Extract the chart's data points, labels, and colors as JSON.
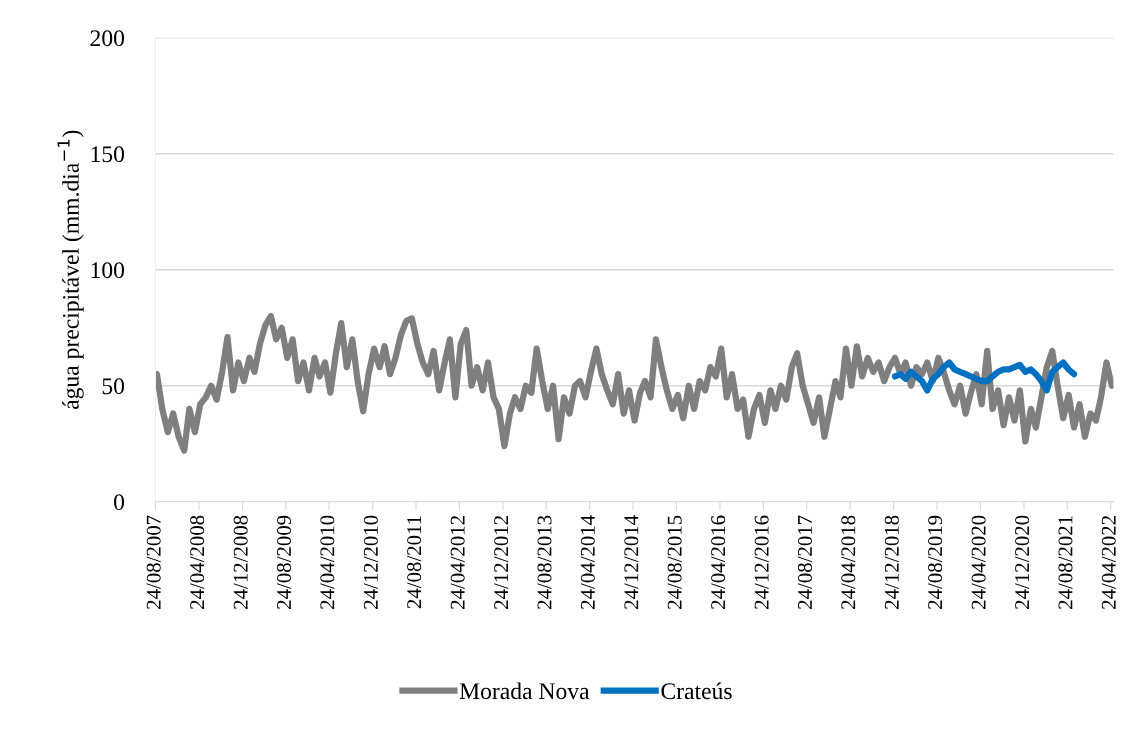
{
  "chart_data": {
    "type": "line",
    "ylabel": "água precipitável (mm.dia$^{−1}$)",
    "x": [
      "2007-09",
      "2007-10",
      "2007-11",
      "2007-12",
      "2008-01",
      "2008-02",
      "2008-03",
      "2008-04",
      "2008-05",
      "2008-06",
      "2008-07",
      "2008-08",
      "2008-09",
      "2008-10",
      "2008-11",
      "2008-12",
      "2009-01",
      "2009-02",
      "2009-03",
      "2009-04",
      "2009-05",
      "2009-06",
      "2009-07",
      "2009-08",
      "2009-09",
      "2009-10",
      "2009-11",
      "2009-12",
      "2010-01",
      "2010-02",
      "2010-03",
      "2010-04",
      "2010-05",
      "2010-06",
      "2010-07",
      "2010-08",
      "2010-09",
      "2010-10",
      "2010-11",
      "2010-12",
      "2011-01",
      "2011-02",
      "2011-03",
      "2011-04",
      "2011-05",
      "2011-06",
      "2011-07",
      "2011-08",
      "2011-09",
      "2011-10",
      "2011-11",
      "2011-12",
      "2012-01",
      "2012-02",
      "2012-03",
      "2012-04",
      "2012-05",
      "2012-06",
      "2012-07",
      "2012-08",
      "2012-09",
      "2012-10",
      "2012-11",
      "2012-12",
      "2013-01",
      "2013-02",
      "2013-03",
      "2013-04",
      "2013-05",
      "2013-06",
      "2013-07",
      "2013-08",
      "2013-09",
      "2013-10",
      "2013-11",
      "2013-12",
      "2014-01",
      "2014-02",
      "2014-03",
      "2014-04",
      "2014-05",
      "2014-06",
      "2014-07",
      "2014-08",
      "2014-09",
      "2014-10",
      "2014-11",
      "2014-12",
      "2015-01",
      "2015-02",
      "2015-03",
      "2015-04",
      "2015-05",
      "2015-06",
      "2015-07",
      "2015-08",
      "2015-09",
      "2015-10",
      "2015-11",
      "2015-12",
      "2016-01",
      "2016-02",
      "2016-03",
      "2016-04",
      "2016-05",
      "2016-06",
      "2016-07",
      "2016-08",
      "2016-09",
      "2016-10",
      "2016-11",
      "2016-12",
      "2017-01",
      "2017-02",
      "2017-03",
      "2017-04",
      "2017-05",
      "2017-06",
      "2017-07",
      "2017-08",
      "2017-09",
      "2017-10",
      "2017-11",
      "2017-12",
      "2018-01",
      "2018-02",
      "2018-03",
      "2018-04",
      "2018-05",
      "2018-06",
      "2018-07",
      "2018-08",
      "2018-09",
      "2018-10",
      "2018-11",
      "2018-12",
      "2019-01",
      "2019-02",
      "2019-03",
      "2019-04",
      "2019-05",
      "2019-06",
      "2019-07",
      "2019-08",
      "2019-09",
      "2019-10",
      "2019-11",
      "2019-12",
      "2020-01",
      "2020-02",
      "2020-03",
      "2020-04",
      "2020-05",
      "2020-06",
      "2020-07",
      "2020-08",
      "2020-09",
      "2020-10",
      "2020-11",
      "2020-12",
      "2021-01",
      "2021-02",
      "2021-03",
      "2021-04",
      "2021-05",
      "2021-06",
      "2021-07",
      "2021-08",
      "2021-09",
      "2021-10",
      "2021-11",
      "2021-12",
      "2022-01",
      "2022-02",
      "2022-03",
      "2022-04",
      "2022-05"
    ],
    "series": [
      {
        "name": "Morada Nova",
        "color": "#7f7f7f",
        "values": [
          55,
          40,
          30,
          38,
          28,
          22,
          40,
          30,
          42,
          45,
          50,
          44,
          56,
          71,
          48,
          60,
          52,
          62,
          56,
          68,
          76,
          80,
          70,
          75,
          62,
          70,
          52,
          60,
          48,
          62,
          54,
          60,
          47,
          64,
          77,
          58,
          70,
          52,
          39,
          55,
          66,
          58,
          67,
          55,
          62,
          72,
          78,
          79,
          68,
          60,
          55,
          65,
          48,
          60,
          70,
          45,
          68,
          74,
          50,
          58,
          48,
          60,
          45,
          40,
          24,
          38,
          45,
          40,
          50,
          47,
          66,
          52,
          40,
          50,
          27,
          45,
          38,
          50,
          52,
          45,
          56,
          66,
          55,
          48,
          42,
          55,
          38,
          48,
          35,
          47,
          52,
          45,
          70,
          58,
          48,
          40,
          46,
          36,
          50,
          40,
          52,
          48,
          58,
          54,
          66,
          45,
          55,
          40,
          44,
          28,
          40,
          46,
          34,
          48,
          40,
          50,
          44,
          58,
          64,
          50,
          42,
          34,
          45,
          28,
          40,
          52,
          45,
          66,
          50,
          67,
          54,
          62,
          56,
          60,
          52,
          58,
          62,
          55,
          60,
          50,
          58,
          55,
          60,
          52,
          62,
          56,
          48,
          42,
          50,
          38,
          47,
          55,
          42,
          65,
          40,
          48,
          33,
          45,
          35,
          48,
          26,
          40,
          32,
          45,
          58,
          65,
          50,
          36,
          46,
          32,
          42,
          28,
          38,
          35,
          45,
          60,
          50
        ]
      },
      {
        "name": "Crateús",
        "color": "#0070c0",
        "x": [
          "2019-01",
          "2019-02",
          "2019-03",
          "2019-04",
          "2019-05",
          "2019-06",
          "2019-07",
          "2019-08",
          "2019-09",
          "2019-10",
          "2019-11",
          "2019-12",
          "2020-01",
          "2020-02",
          "2020-03",
          "2020-04",
          "2020-05",
          "2020-06",
          "2020-07",
          "2020-08",
          "2020-09",
          "2020-10",
          "2020-11",
          "2020-12",
          "2021-01",
          "2021-02",
          "2021-03",
          "2021-04",
          "2021-05",
          "2021-06",
          "2021-07",
          "2021-08",
          "2021-09",
          "2021-10"
        ],
        "values": [
          54,
          55,
          53,
          56,
          54,
          52,
          48,
          53,
          55,
          58,
          60,
          57,
          56,
          55,
          54,
          53,
          52,
          52,
          54,
          56,
          57,
          57,
          58,
          59,
          56,
          57,
          55,
          52,
          48,
          56,
          58,
          60,
          57,
          55
        ]
      }
    ],
    "xlim": [
      "2007-08-24",
      "2022-05-10"
    ],
    "xticks": [
      {
        "value": "2007-08-24",
        "label": "24/08/2007"
      },
      {
        "value": "2008-04-24",
        "label": "24/04/2008"
      },
      {
        "value": "2008-12-24",
        "label": "24/12/2008"
      },
      {
        "value": "2009-08-24",
        "label": "24/08/2009"
      },
      {
        "value": "2010-04-24",
        "label": "24/04/2010"
      },
      {
        "value": "2010-12-24",
        "label": "24/12/2010"
      },
      {
        "value": "2011-08-24",
        "label": "24/08/2011"
      },
      {
        "value": "2012-04-24",
        "label": "24/04/2012"
      },
      {
        "value": "2012-12-24",
        "label": "24/12/2012"
      },
      {
        "value": "2013-08-24",
        "label": "24/08/2013"
      },
      {
        "value": "2014-04-24",
        "label": "24/04/2014"
      },
      {
        "value": "2014-12-24",
        "label": "24/12/2014"
      },
      {
        "value": "2015-08-24",
        "label": "24/08/2015"
      },
      {
        "value": "2016-04-24",
        "label": "24/04/2016"
      },
      {
        "value": "2016-12-24",
        "label": "24/12/2016"
      },
      {
        "value": "2017-08-24",
        "label": "24/08/2017"
      },
      {
        "value": "2018-04-24",
        "label": "24/04/2018"
      },
      {
        "value": "2018-12-24",
        "label": "24/12/2018"
      },
      {
        "value": "2019-08-24",
        "label": "24/08/2019"
      },
      {
        "value": "2020-04-24",
        "label": "24/04/2020"
      },
      {
        "value": "2020-12-24",
        "label": "24/12/2020"
      },
      {
        "value": "2021-08-24",
        "label": "24/08/2021"
      },
      {
        "value": "2022-04-24",
        "label": "24/04/2022"
      }
    ],
    "ylim": [
      0,
      200
    ],
    "yticks": [
      0,
      50,
      100,
      150,
      200
    ],
    "grid": "y",
    "legend": "bottom",
    "marker": "none",
    "line_style": "solid"
  }
}
